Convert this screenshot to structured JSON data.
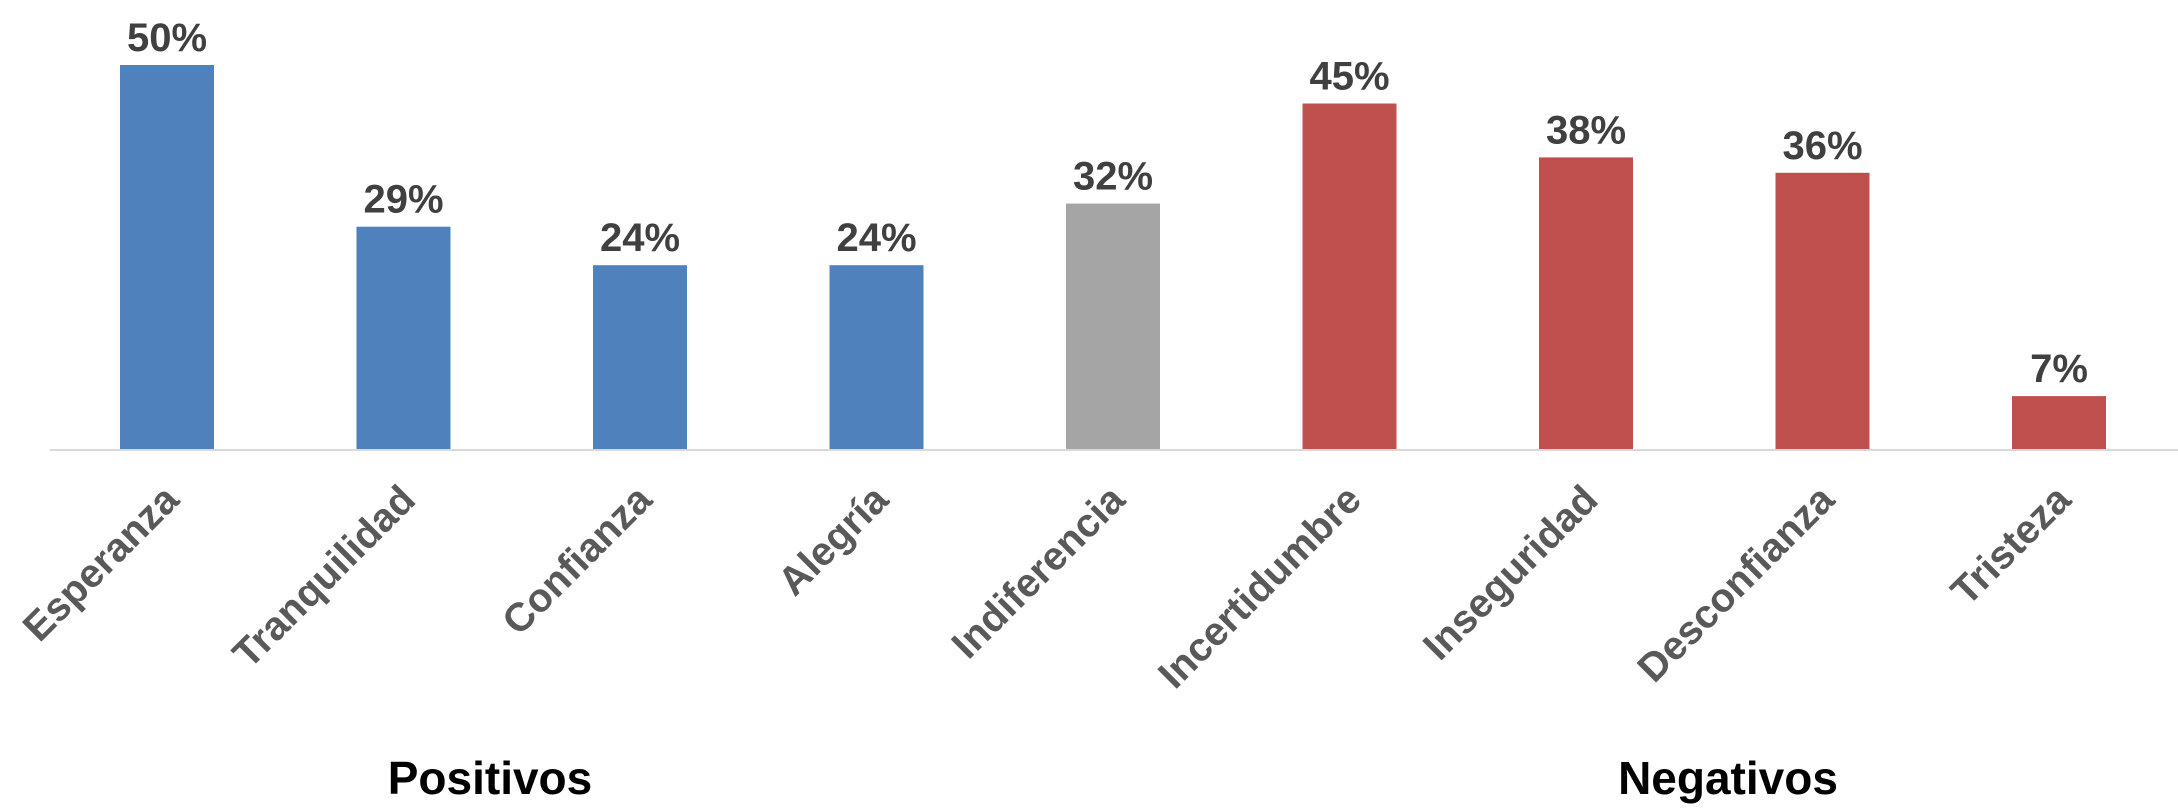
{
  "chart_data": {
    "type": "bar",
    "categories": [
      "Esperanza",
      "Tranquilidad",
      "Confianza",
      "Alegría",
      "Indiferencia",
      "Incertidumbre",
      "Inseguridad",
      "Desconfianza",
      "Tristeza"
    ],
    "values": [
      50,
      29,
      24,
      24,
      32,
      45,
      38,
      36,
      7
    ],
    "value_labels": [
      "50%",
      "29%",
      "24%",
      "24%",
      "32%",
      "45%",
      "38%",
      "36%",
      "7%"
    ],
    "bar_groups": [
      "positive",
      "positive",
      "positive",
      "positive",
      "neutral",
      "negative",
      "negative",
      "negative",
      "negative"
    ],
    "group_labels": {
      "positive": "Positivos",
      "negative": "Negativos"
    },
    "colors": {
      "positive": "#4F81BD",
      "neutral": "#A5A5A5",
      "negative": "#C0504D",
      "axis": "#D9D9D9"
    },
    "ylim": [
      0,
      50
    ],
    "grid": false,
    "legend": "none"
  }
}
